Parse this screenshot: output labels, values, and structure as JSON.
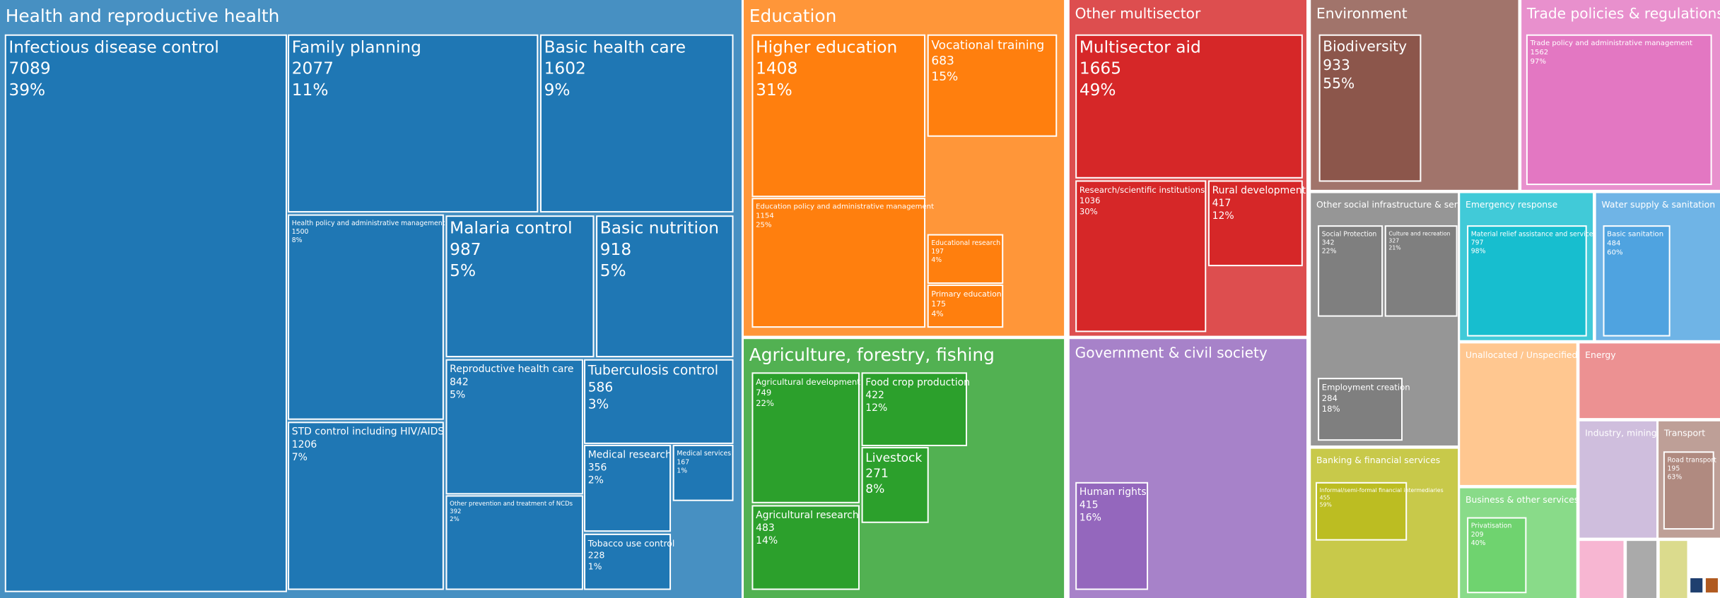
{
  "chart_data": {
    "type": "treemap",
    "groups": [
      {
        "name": "Health and reproductive health",
        "color": "#1f77b4",
        "children": [
          {
            "name": "Infectious disease control",
            "value": 7089,
            "share": "39%"
          },
          {
            "name": "Family planning",
            "value": 2077,
            "share": "11%"
          },
          {
            "name": "Basic health care",
            "value": 1602,
            "share": "9%"
          },
          {
            "name": "Health policy and administrative management",
            "value": 1500,
            "share": "8%"
          },
          {
            "name": "Malaria control",
            "value": 987,
            "share": "5%"
          },
          {
            "name": "Basic nutrition",
            "value": 918,
            "share": "5%"
          },
          {
            "name": "STD control including HIV/AIDS",
            "value": 1206,
            "share": "7%"
          },
          {
            "name": "Reproductive health care",
            "value": 842,
            "share": "5%"
          },
          {
            "name": "Tuberculosis control",
            "value": 586,
            "share": "3%"
          },
          {
            "name": "Other prevention and treatment of NCDs",
            "value": 392,
            "share": "2%"
          },
          {
            "name": "Medical research",
            "value": 356,
            "share": "2%"
          },
          {
            "name": "Medical services",
            "value": 167,
            "share": "1%"
          },
          {
            "name": "Tobacco use control",
            "value": 228,
            "share": "1%"
          }
        ]
      },
      {
        "name": "Education",
        "color": "#ff7f0e",
        "children": [
          {
            "name": "Higher education",
            "value": 1408,
            "share": "31%"
          },
          {
            "name": "Vocational training",
            "value": 683,
            "share": "15%"
          },
          {
            "name": "Education policy and administrative management",
            "value": 1154,
            "share": "25%"
          },
          {
            "name": "Educational research",
            "value": 197,
            "share": "4%"
          },
          {
            "name": "Primary education",
            "value": 175,
            "share": "4%"
          }
        ]
      },
      {
        "name": "Other multisector",
        "color": "#d62728",
        "children": [
          {
            "name": "Multisector aid",
            "value": 1665,
            "share": "49%"
          },
          {
            "name": "Research/scientific institutions",
            "value": 1036,
            "share": "30%"
          },
          {
            "name": "Rural development",
            "value": 417,
            "share": "12%"
          }
        ]
      },
      {
        "name": "Environment",
        "color": "#8c564b",
        "children": [
          {
            "name": "Biodiversity",
            "value": 933,
            "share": "55%"
          }
        ]
      },
      {
        "name": "Trade policies & regulations",
        "color": "#e377c2",
        "children": [
          {
            "name": "Trade policy and administrative management",
            "value": 1562,
            "share": "97%"
          }
        ]
      },
      {
        "name": "Agriculture, forestry, fishing",
        "color": "#2ca02c",
        "children": [
          {
            "name": "Agricultural development",
            "value": 749,
            "share": "22%"
          },
          {
            "name": "Food crop production",
            "value": 422,
            "share": "12%"
          },
          {
            "name": "Agricultural research",
            "value": 483,
            "share": "14%"
          },
          {
            "name": "Livestock",
            "value": 271,
            "share": "8%"
          }
        ]
      },
      {
        "name": "Government & civil society",
        "color": "#9467bd",
        "children": [
          {
            "name": "Human rights",
            "value": 415,
            "share": "16%"
          }
        ]
      },
      {
        "name": "Other social infrastructure & services",
        "color": "#7f7f7f",
        "children": [
          {
            "name": "Social Protection",
            "value": 342,
            "share": "22%"
          },
          {
            "name": "Culture and recreation",
            "value": 327,
            "share": "21%"
          },
          {
            "name": "Employment creation",
            "value": 284,
            "share": "18%"
          }
        ]
      },
      {
        "name": "Emergency response",
        "color": "#17becf",
        "children": [
          {
            "name": "Material relief assistance and services",
            "value": 797,
            "share": "98%"
          }
        ]
      },
      {
        "name": "Water supply & sanitation",
        "color": "#4fa3e0",
        "children": [
          {
            "name": "Basic sanitation",
            "value": 484,
            "share": "60%"
          }
        ]
      },
      {
        "name": "Banking & financial services",
        "color": "#bcbd22",
        "children": [
          {
            "name": "Informal/semi-formal financial intermediaries",
            "value": 455,
            "share": "59%"
          }
        ]
      },
      {
        "name": "Unallocated / Unspecified",
        "color": "#ffbb78",
        "children": []
      },
      {
        "name": "Energy",
        "color": "#e8797a",
        "children": []
      },
      {
        "name": "Business & other services",
        "color": "#6fd36f",
        "children": [
          {
            "name": "Privatisation",
            "value": 209,
            "share": "40%"
          }
        ]
      },
      {
        "name": "Industry, mining, construction",
        "color": "#c5b0d5",
        "children": []
      },
      {
        "name": "Transport",
        "color": "#b08a80",
        "children": [
          {
            "name": "Road transport",
            "value": 195,
            "share": "63%"
          }
        ]
      }
    ]
  }
}
